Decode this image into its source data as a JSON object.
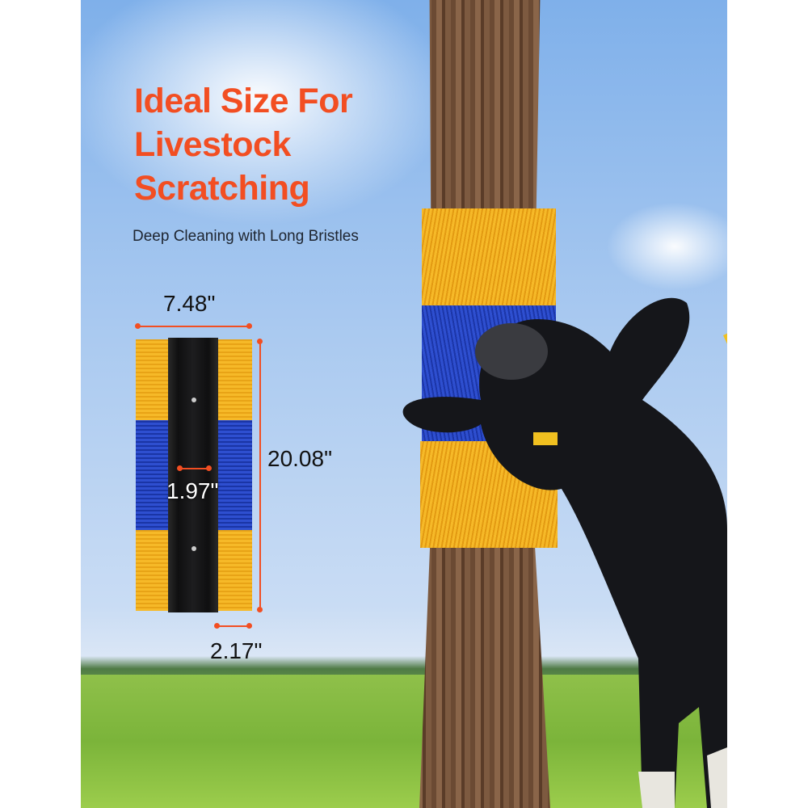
{
  "headline": {
    "title_lines": [
      "Ideal Size For",
      "Livestock",
      "Scratching"
    ],
    "subtitle": "Deep Cleaning with Long Bristles"
  },
  "dimensions": {
    "width": "7.48\"",
    "height": "20.08\"",
    "core_width": "1.97\"",
    "bristle_length": "2.17\""
  },
  "colors": {
    "accent": "#f24e22",
    "bristle_yellow": "#f6b928",
    "bristle_blue": "#2e4fd0",
    "sky": "#a9c9f0",
    "grass": "#8fc04a"
  }
}
